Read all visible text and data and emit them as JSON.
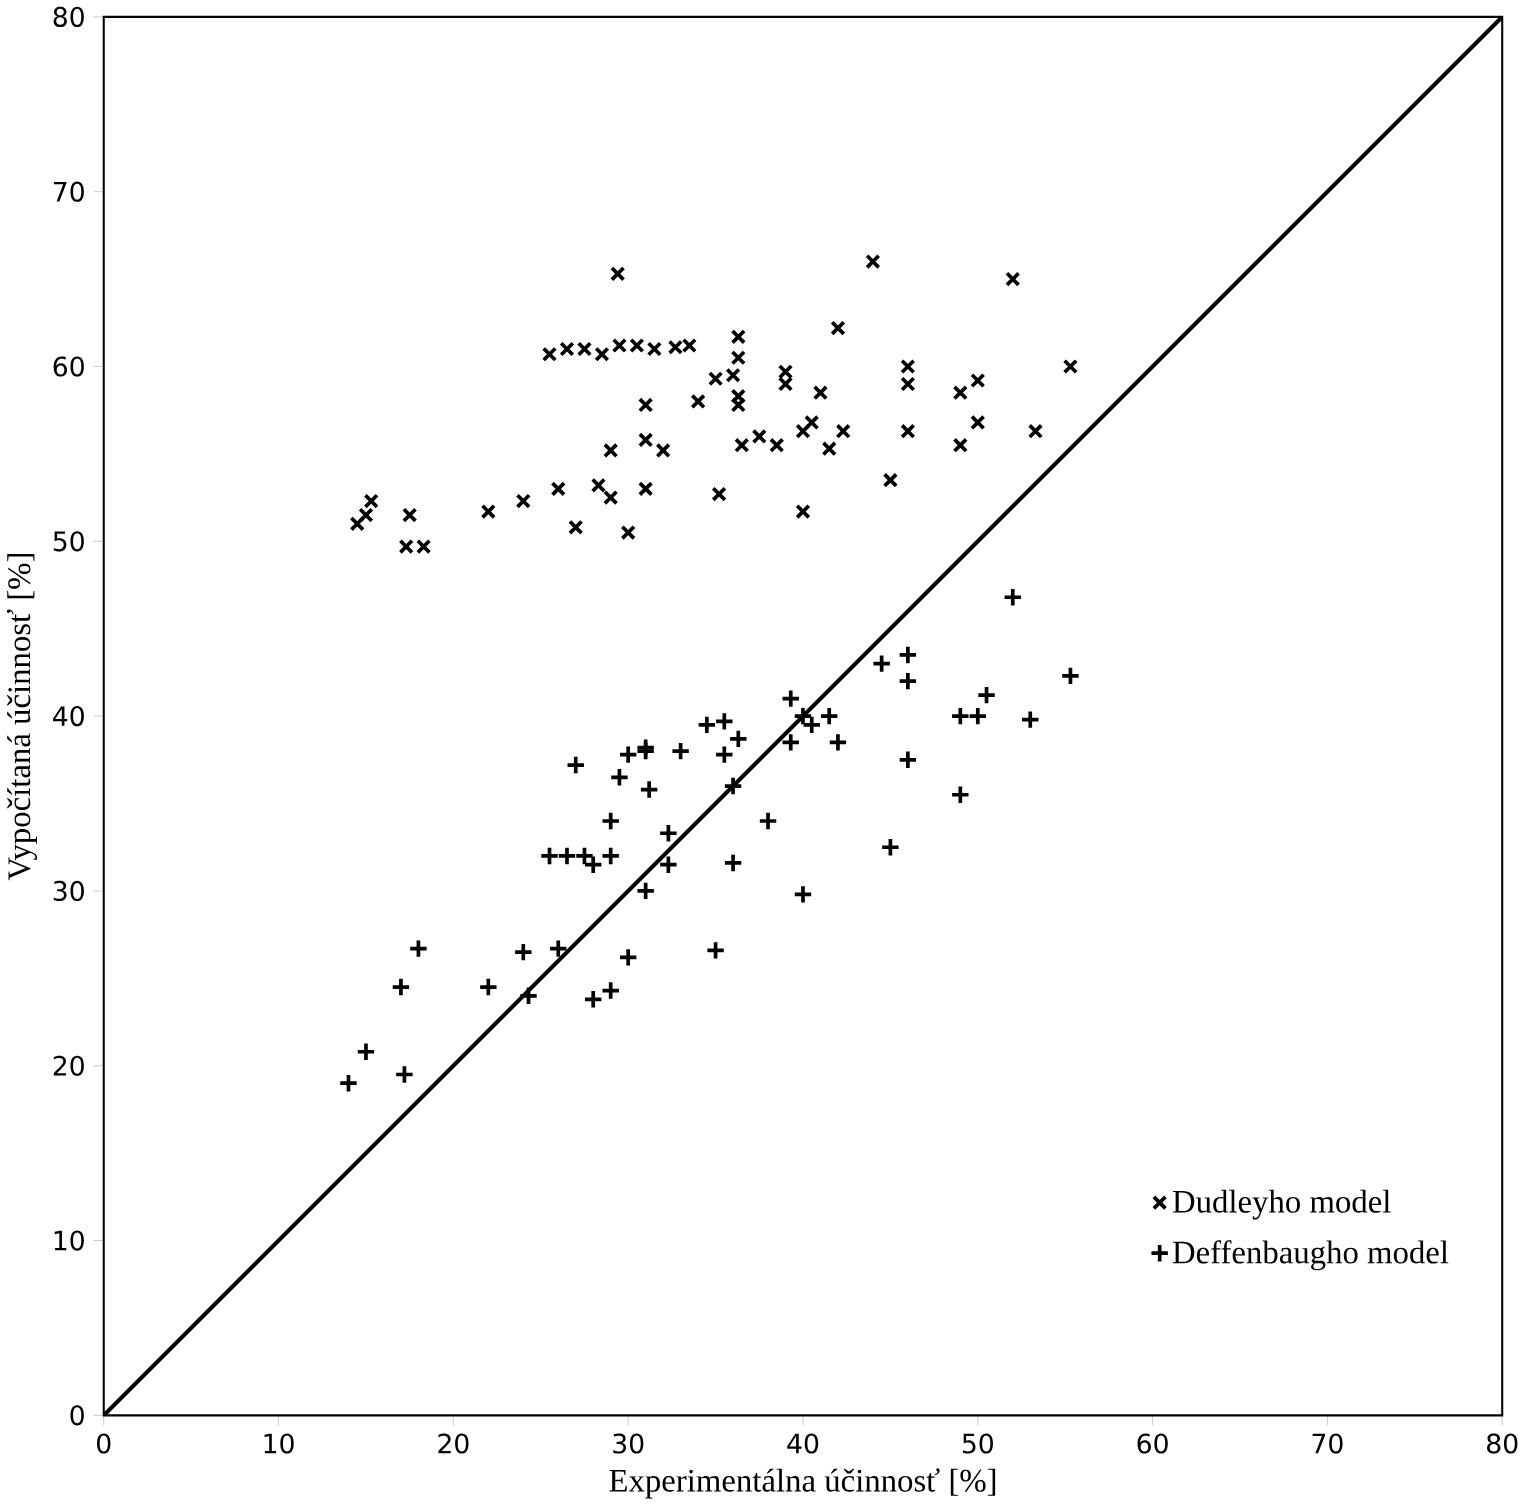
{
  "chart_data": {
    "type": "scatter",
    "xlabel": "Experimentálna účinnosť [%]",
    "ylabel": "Vypočítaná účinnosť [%]",
    "xlim": [
      0,
      80
    ],
    "ylim": [
      0,
      80
    ],
    "xticks": [
      0,
      10,
      20,
      30,
      40,
      50,
      60,
      70,
      80
    ],
    "yticks": [
      0,
      10,
      20,
      30,
      40,
      50,
      60,
      70,
      80
    ],
    "grid": false,
    "legend": "bottom right",
    "series": [
      {
        "name": "Dudleyho model",
        "color": "#000000",
        "marker": "cross",
        "x": [
          14.5,
          15,
          15.3,
          17.5,
          17.3,
          18.3,
          22,
          24,
          26,
          27,
          28.3,
          29,
          30,
          31,
          29,
          31,
          32,
          35.2,
          29.4,
          25.5,
          26.5,
          27.5,
          28.5,
          29.5,
          30.5,
          31.5,
          32.7,
          33.5,
          31,
          34,
          35,
          36,
          36.3,
          36.3,
          36.3,
          36.3,
          37.5,
          39,
          39,
          40,
          40.5,
          41.5,
          42.3,
          42,
          44,
          45,
          46,
          46,
          46,
          49,
          49,
          50,
          50,
          52,
          53.3,
          55.3,
          40,
          36.5,
          38.5,
          41
        ],
        "values": [
          51,
          51.5,
          52.3,
          51.5,
          49.7,
          49.7,
          51.7,
          52.3,
          53,
          50.8,
          53.2,
          52.5,
          50.5,
          53,
          55.2,
          55.8,
          55.2,
          52.7,
          65.3,
          60.7,
          61,
          61,
          60.7,
          61.2,
          61.2,
          61,
          61.1,
          61.2,
          57.8,
          58,
          59.3,
          59.5,
          61.7,
          60.5,
          58.3,
          57.8,
          56,
          59.7,
          59,
          56.3,
          56.8,
          55.3,
          56.3,
          62.2,
          66,
          53.5,
          60,
          59,
          56.3,
          55.5,
          58.5,
          59.2,
          56.8,
          65,
          56.3,
          60,
          51.7,
          55.5,
          55.5,
          58.5
        ]
      },
      {
        "name": "Deffenbaugho model",
        "color": "#000000",
        "marker": "plus",
        "x": [
          14,
          15,
          17,
          17.2,
          18,
          22,
          24,
          24.3,
          26,
          25.5,
          26.5,
          27.5,
          28,
          29,
          27,
          29.5,
          30,
          31,
          28,
          29,
          30,
          29,
          31,
          31.2,
          32.3,
          33,
          34.5,
          35.5,
          36,
          36.3,
          36,
          35,
          38,
          39.3,
          39.3,
          40,
          40.5,
          41.5,
          42,
          40,
          44.5,
          45,
          46,
          46,
          46,
          49,
          50,
          50.5,
          49,
          52,
          53,
          55.3,
          32.3,
          31,
          35.5
        ],
        "values": [
          19,
          20.8,
          24.5,
          19.5,
          26.7,
          24.5,
          26.5,
          24,
          26.7,
          32,
          32,
          32,
          31.5,
          32,
          37.2,
          36.5,
          37.8,
          38,
          23.8,
          24.3,
          26.2,
          34,
          30,
          35.8,
          33.3,
          38,
          39.5,
          39.7,
          36,
          38.7,
          31.6,
          26.6,
          34,
          41,
          38.5,
          40,
          39.5,
          40,
          38.5,
          29.8,
          43,
          32.5,
          43.5,
          42,
          37.5,
          40,
          40,
          41.2,
          35.5,
          46.8,
          39.8,
          42.3,
          31.5,
          38.2,
          37.8
        ]
      },
      {
        "type": "line",
        "color": "#000000",
        "marker": "none",
        "x": [
          0,
          80
        ],
        "values": [
          0,
          80
        ]
      }
    ]
  }
}
